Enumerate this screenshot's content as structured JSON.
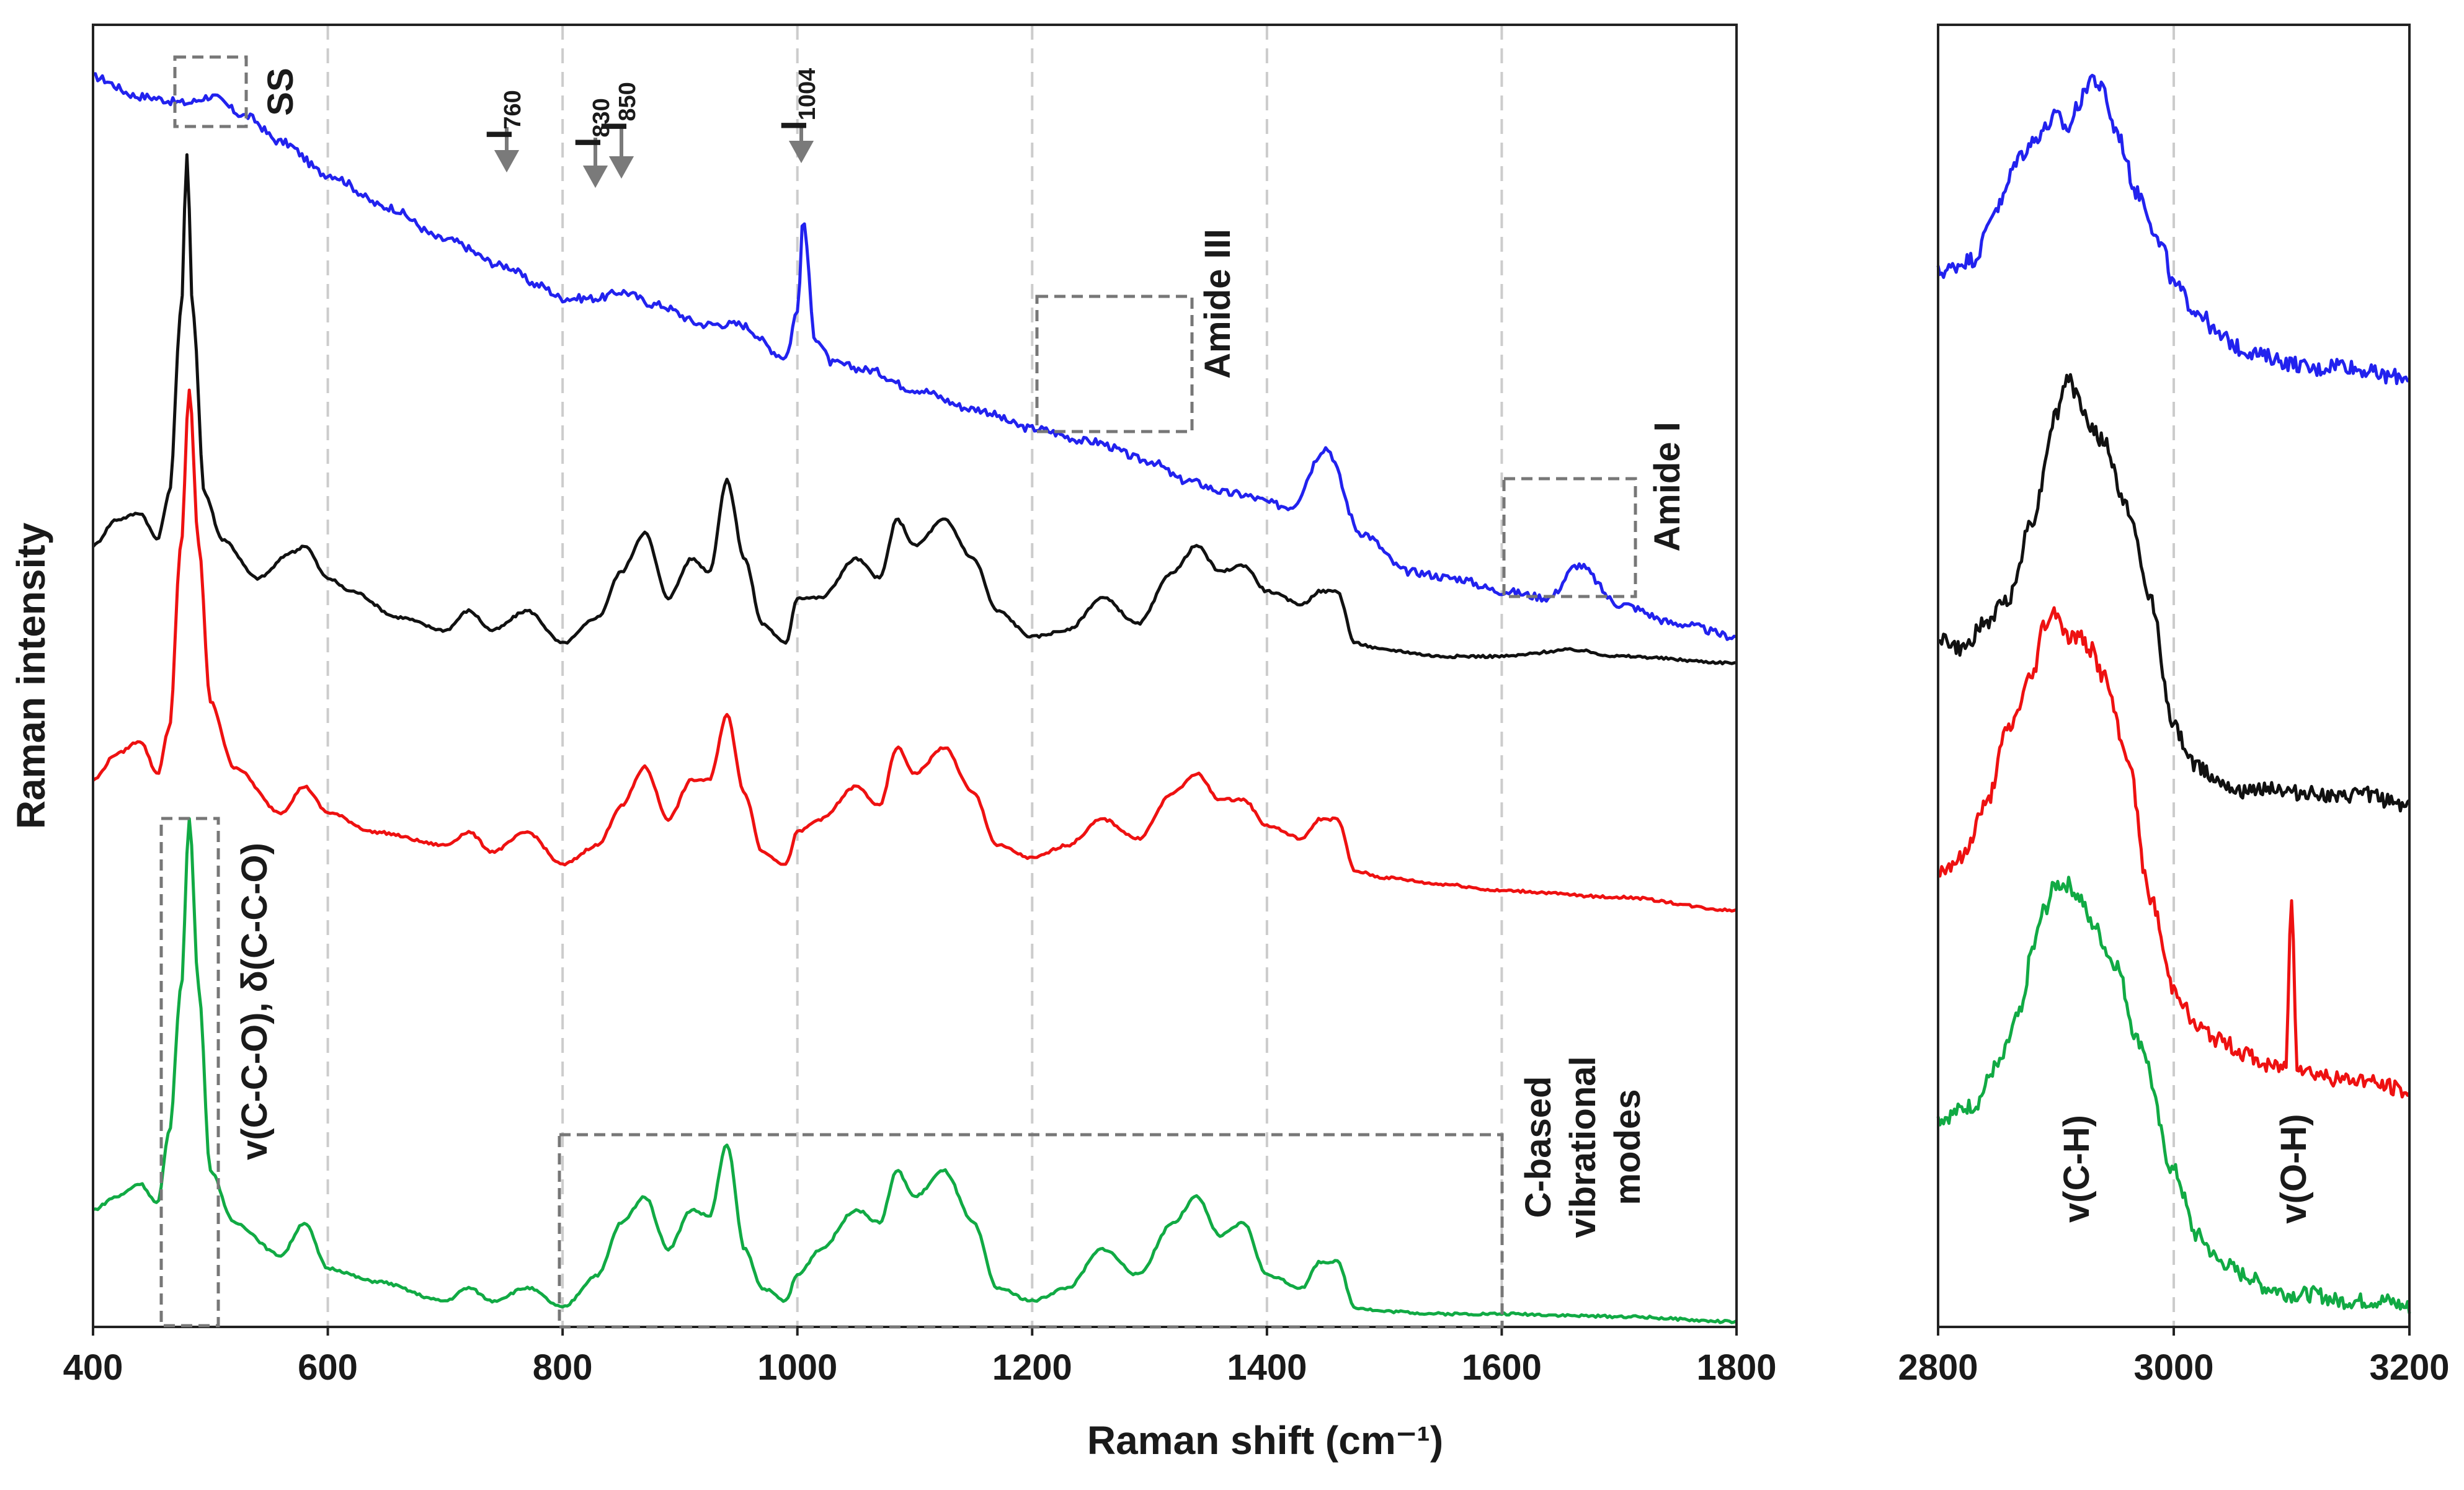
{
  "chart_data": [
    {
      "type": "line",
      "panel": "left",
      "title": "",
      "xlabel": "Raman shift (cm⁻¹)",
      "ylabel": "Raman intensity",
      "xlim": [
        400,
        1800
      ],
      "ylim": [
        0,
        1
      ],
      "xticks": [
        "400",
        "600",
        "800",
        "1000",
        "1200",
        "1400",
        "1600",
        "1800"
      ],
      "grid_x": [
        600,
        800,
        1000,
        1200,
        1400,
        1600
      ],
      "series": [
        {
          "name": "blue",
          "color": "#2222ee",
          "x": [
            400,
            440,
            480,
            500,
            530,
            560,
            600,
            650,
            700,
            750,
            780,
            800,
            830,
            850,
            880,
            920,
            950,
            990,
            1000,
            1005,
            1015,
            1030,
            1060,
            1100,
            1150,
            1200,
            1250,
            1300,
            1330,
            1370,
            1420,
            1450,
            1480,
            1520,
            1560,
            1600,
            1640,
            1665,
            1700,
            1750,
            1800
          ],
          "values": [
            0.96,
            0.945,
            0.94,
            0.945,
            0.93,
            0.91,
            0.885,
            0.86,
            0.835,
            0.815,
            0.8,
            0.79,
            0.79,
            0.795,
            0.785,
            0.77,
            0.77,
            0.745,
            0.78,
            0.85,
            0.76,
            0.74,
            0.735,
            0.72,
            0.705,
            0.69,
            0.68,
            0.665,
            0.65,
            0.64,
            0.63,
            0.675,
            0.61,
            0.58,
            0.575,
            0.565,
            0.56,
            0.585,
            0.555,
            0.54,
            0.53
          ]
        },
        {
          "name": "black",
          "color": "#111111",
          "x": [
            400,
            420,
            440,
            455,
            465,
            475,
            480,
            485,
            495,
            510,
            540,
            570,
            580,
            600,
            620,
            660,
            700,
            720,
            740,
            770,
            800,
            830,
            850,
            870,
            890,
            910,
            925,
            940,
            955,
            970,
            990,
            1000,
            1020,
            1050,
            1070,
            1085,
            1100,
            1125,
            1150,
            1170,
            1200,
            1230,
            1260,
            1290,
            1320,
            1340,
            1360,
            1380,
            1400,
            1430,
            1445,
            1460,
            1475,
            1500,
            1550,
            1600,
            1660,
            1700,
            1800
          ],
          "values": [
            0.6,
            0.62,
            0.625,
            0.605,
            0.64,
            0.78,
            0.9,
            0.78,
            0.64,
            0.605,
            0.575,
            0.595,
            0.6,
            0.575,
            0.565,
            0.545,
            0.535,
            0.55,
            0.535,
            0.55,
            0.525,
            0.545,
            0.58,
            0.61,
            0.56,
            0.59,
            0.58,
            0.65,
            0.59,
            0.54,
            0.525,
            0.56,
            0.56,
            0.59,
            0.575,
            0.62,
            0.6,
            0.62,
            0.59,
            0.55,
            0.53,
            0.535,
            0.56,
            0.54,
            0.58,
            0.6,
            0.58,
            0.585,
            0.565,
            0.555,
            0.565,
            0.565,
            0.525,
            0.52,
            0.515,
            0.515,
            0.52,
            0.515,
            0.51
          ]
        },
        {
          "name": "red",
          "color": "#ee1111",
          "x": [
            400,
            420,
            440,
            455,
            465,
            475,
            482,
            490,
            500,
            520,
            560,
            580,
            600,
            640,
            700,
            720,
            740,
            770,
            800,
            830,
            850,
            870,
            890,
            910,
            925,
            940,
            955,
            970,
            990,
            1000,
            1020,
            1050,
            1070,
            1085,
            1100,
            1125,
            1150,
            1170,
            1200,
            1230,
            1260,
            1290,
            1320,
            1340,
            1360,
            1380,
            1400,
            1430,
            1445,
            1460,
            1475,
            1500,
            1550,
            1600,
            1700,
            1800
          ],
          "values": [
            0.42,
            0.44,
            0.45,
            0.425,
            0.46,
            0.6,
            0.72,
            0.6,
            0.48,
            0.43,
            0.395,
            0.415,
            0.395,
            0.38,
            0.37,
            0.38,
            0.365,
            0.38,
            0.355,
            0.37,
            0.4,
            0.43,
            0.39,
            0.42,
            0.42,
            0.47,
            0.41,
            0.365,
            0.355,
            0.38,
            0.39,
            0.415,
            0.4,
            0.445,
            0.425,
            0.445,
            0.41,
            0.37,
            0.36,
            0.37,
            0.39,
            0.375,
            0.41,
            0.425,
            0.405,
            0.405,
            0.385,
            0.375,
            0.39,
            0.39,
            0.35,
            0.345,
            0.34,
            0.335,
            0.33,
            0.32
          ]
        },
        {
          "name": "green",
          "color": "#11aa44",
          "x": [
            400,
            420,
            440,
            455,
            465,
            475,
            482,
            490,
            500,
            520,
            560,
            580,
            600,
            640,
            700,
            720,
            740,
            770,
            800,
            830,
            850,
            870,
            890,
            910,
            925,
            940,
            955,
            970,
            990,
            1000,
            1020,
            1050,
            1070,
            1085,
            1100,
            1125,
            1150,
            1170,
            1200,
            1230,
            1260,
            1290,
            1320,
            1340,
            1360,
            1380,
            1400,
            1430,
            1445,
            1460,
            1475,
            1500,
            1550,
            1600,
            1700,
            1800
          ],
          "values": [
            0.09,
            0.1,
            0.11,
            0.095,
            0.15,
            0.26,
            0.39,
            0.26,
            0.12,
            0.08,
            0.055,
            0.08,
            0.045,
            0.035,
            0.02,
            0.03,
            0.02,
            0.03,
            0.015,
            0.04,
            0.08,
            0.1,
            0.06,
            0.09,
            0.085,
            0.14,
            0.06,
            0.03,
            0.02,
            0.04,
            0.06,
            0.09,
            0.08,
            0.12,
            0.1,
            0.12,
            0.08,
            0.03,
            0.02,
            0.03,
            0.06,
            0.04,
            0.08,
            0.1,
            0.07,
            0.08,
            0.04,
            0.03,
            0.05,
            0.05,
            0.015,
            0.012,
            0.01,
            0.01,
            0.008,
            0.004
          ]
        }
      ],
      "annotations": {
        "ss": "SS",
        "i760_main": "I",
        "i760_sub": "760",
        "i830_main": "I",
        "i830_sub": "830",
        "i850_main": "I",
        "i850_sub": "850",
        "i1004_main": "I",
        "i1004_sub": "1004",
        "amide3": "Amide III",
        "amide1": "Amide I",
        "ccO": "v(C-C-O), δ(C-C-O)",
        "cbased_1": "C-based",
        "cbased_2": "vibrational",
        "cbased_3": "modes"
      }
    },
    {
      "type": "line",
      "panel": "right",
      "xlabel": "",
      "ylabel": "",
      "xlim": [
        2800,
        3200
      ],
      "ylim": [
        0,
        1
      ],
      "xticks": [
        "2800",
        "3000",
        "3200"
      ],
      "grid_x": [
        3000
      ],
      "series": [
        {
          "name": "blue",
          "color": "#2222ee",
          "x": [
            2800,
            2830,
            2850,
            2870,
            2880,
            2890,
            2900,
            2910,
            2920,
            2930,
            2940,
            2950,
            2970,
            2990,
            3000,
            3020,
            3040,
            3060,
            3080,
            3100,
            3120,
            3140,
            3160,
            3180,
            3200
          ],
          "values": [
            0.81,
            0.82,
            0.86,
            0.9,
            0.91,
            0.92,
            0.93,
            0.92,
            0.94,
            0.96,
            0.95,
            0.92,
            0.87,
            0.83,
            0.8,
            0.78,
            0.76,
            0.75,
            0.745,
            0.74,
            0.735,
            0.74,
            0.735,
            0.73,
            0.73
          ]
        },
        {
          "name": "black",
          "color": "#111111",
          "x": [
            2800,
            2820,
            2840,
            2860,
            2880,
            2900,
            2910,
            2920,
            2930,
            2940,
            2960,
            2980,
            3000,
            3020,
            3040,
            3060,
            3080,
            3100,
            3120,
            3140,
            3160,
            3180,
            3200
          ],
          "values": [
            0.53,
            0.52,
            0.54,
            0.56,
            0.62,
            0.7,
            0.73,
            0.71,
            0.69,
            0.68,
            0.63,
            0.56,
            0.46,
            0.43,
            0.42,
            0.41,
            0.415,
            0.41,
            0.41,
            0.405,
            0.41,
            0.405,
            0.4
          ]
        },
        {
          "name": "red",
          "color": "#ee1111",
          "x": [
            2800,
            2820,
            2840,
            2860,
            2880,
            2890,
            2900,
            2910,
            2920,
            2930,
            2940,
            2960,
            2980,
            3000,
            3020,
            3040,
            3060,
            3080,
            3095,
            3100,
            3105,
            3120,
            3140,
            3160,
            3180,
            3200
          ],
          "values": [
            0.35,
            0.36,
            0.4,
            0.46,
            0.5,
            0.54,
            0.55,
            0.53,
            0.53,
            0.52,
            0.5,
            0.44,
            0.33,
            0.26,
            0.23,
            0.22,
            0.21,
            0.2,
            0.2,
            0.33,
            0.2,
            0.195,
            0.19,
            0.19,
            0.185,
            0.18
          ]
        },
        {
          "name": "green",
          "color": "#11aa44",
          "x": [
            2800,
            2830,
            2850,
            2870,
            2880,
            2890,
            2900,
            2910,
            2920,
            2930,
            2950,
            2970,
            3000,
            3020,
            3040,
            3060,
            3080,
            3100,
            3120,
            3140,
            3160,
            3180,
            3200
          ],
          "values": [
            0.16,
            0.17,
            0.2,
            0.24,
            0.29,
            0.32,
            0.34,
            0.34,
            0.33,
            0.31,
            0.28,
            0.22,
            0.12,
            0.07,
            0.05,
            0.04,
            0.03,
            0.025,
            0.025,
            0.02,
            0.02,
            0.02,
            0.015
          ]
        }
      ],
      "annotations": {
        "ch": "v(C-H)",
        "oh": "v(O-H)"
      }
    }
  ]
}
